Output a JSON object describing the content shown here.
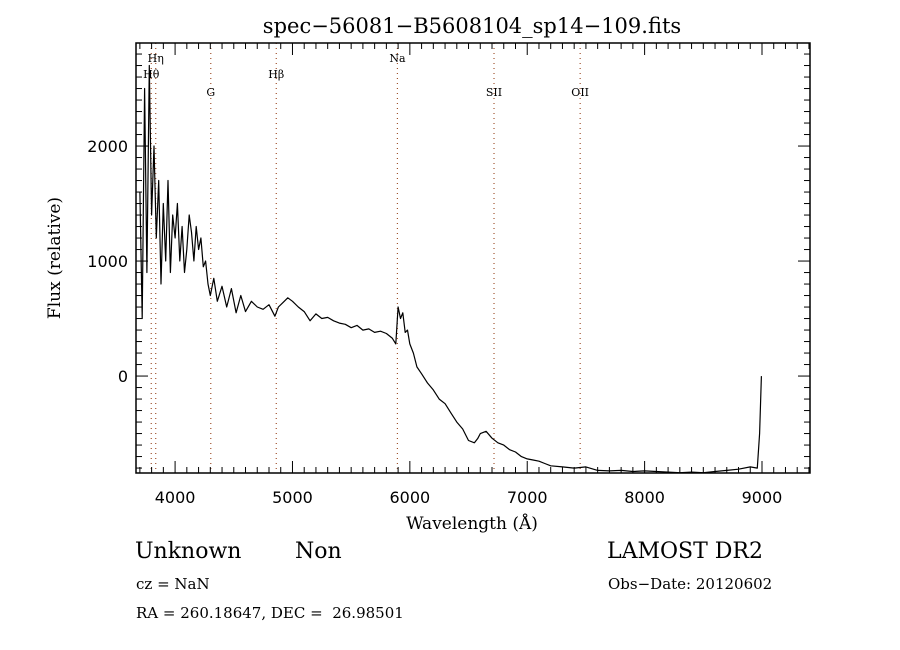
{
  "chart_data": {
    "type": "line",
    "title": "spec−56081−B5608104_sp14−109.fits",
    "xlabel": "Wavelength (Å)",
    "ylabel": "Flux (relative)",
    "xlim": [
      3667,
      9409
    ],
    "ylim": [
      -843,
      2896
    ],
    "xticks": [
      4000,
      5000,
      6000,
      7000,
      8000,
      9000
    ],
    "yticks": [
      0,
      1000,
      2000
    ],
    "xtick_labels": [
      "4000",
      "5000",
      "6000",
      "7000",
      "8000",
      "9000"
    ],
    "ytick_labels": [
      "0",
      "1000",
      "2000"
    ],
    "grid": false,
    "line_color": "#000000",
    "marker_color": "#a0522d",
    "spectral_lines": [
      {
        "label": "Hη",
        "wavelength": 3835,
        "row": 0
      },
      {
        "label": "Hθ",
        "wavelength": 3797,
        "row": 1
      },
      {
        "label": "G",
        "wavelength": 4304,
        "row": 2
      },
      {
        "label": "Hβ",
        "wavelength": 4862,
        "row": 1
      },
      {
        "label": "Na",
        "wavelength": 5894,
        "row": 0
      },
      {
        "label": "SII",
        "wavelength": 6717,
        "row": 2
      },
      {
        "label": "OII",
        "wavelength": 7451,
        "row": 2
      }
    ],
    "series": [
      {
        "name": "flux",
        "x": [
          3700,
          3720,
          3740,
          3760,
          3780,
          3800,
          3820,
          3840,
          3860,
          3880,
          3900,
          3920,
          3940,
          3960,
          3980,
          4000,
          4020,
          4040,
          4060,
          4080,
          4100,
          4120,
          4140,
          4160,
          4180,
          4200,
          4220,
          4240,
          4260,
          4280,
          4300,
          4330,
          4360,
          4400,
          4440,
          4480,
          4520,
          4560,
          4600,
          4650,
          4700,
          4750,
          4800,
          4850,
          4880,
          4920,
          4960,
          5000,
          5050,
          5100,
          5150,
          5200,
          5250,
          5300,
          5350,
          5400,
          5450,
          5500,
          5550,
          5600,
          5650,
          5700,
          5750,
          5800,
          5850,
          5880,
          5900,
          5920,
          5940,
          5960,
          5980,
          6000,
          6030,
          6060,
          6100,
          6150,
          6200,
          6250,
          6300,
          6350,
          6400,
          6450,
          6500,
          6550,
          6580,
          6600,
          6650,
          6700,
          6750,
          6800,
          6850,
          6900,
          6950,
          7000,
          7050,
          7100,
          7150,
          7200,
          7300,
          7400,
          7500,
          7600,
          7700,
          7800,
          7900,
          8000,
          8100,
          8200,
          8300,
          8400,
          8500,
          8600,
          8700,
          8800,
          8900,
          8960,
          8980,
          8995
        ],
        "y": [
          1600,
          500,
          2500,
          900,
          2700,
          1400,
          2000,
          1200,
          1700,
          800,
          1500,
          1000,
          1700,
          900,
          1400,
          1200,
          1500,
          1000,
          1300,
          900,
          1100,
          1400,
          1250,
          1000,
          1300,
          1100,
          1200,
          950,
          1000,
          800,
          700,
          850,
          650,
          780,
          600,
          760,
          550,
          700,
          560,
          650,
          600,
          580,
          620,
          520,
          600,
          640,
          680,
          650,
          600,
          560,
          480,
          540,
          500,
          510,
          480,
          460,
          450,
          420,
          440,
          400,
          410,
          380,
          390,
          370,
          330,
          280,
          600,
          500,
          550,
          380,
          400,
          280,
          200,
          80,
          20,
          -60,
          -120,
          -200,
          -240,
          -320,
          -400,
          -460,
          -560,
          -580,
          -540,
          -500,
          -480,
          -540,
          -580,
          -600,
          -640,
          -660,
          -700,
          -720,
          -730,
          -740,
          -760,
          -780,
          -790,
          -800,
          -790,
          -820,
          -825,
          -820,
          -830,
          -825,
          -830,
          -835,
          -840,
          -835,
          -840,
          -830,
          -820,
          -810,
          -790,
          -800,
          -500,
          0
        ]
      }
    ]
  },
  "info": {
    "object_class": "Unknown",
    "subclass": "Non",
    "survey": "LAMOST DR2",
    "redshift": "cz = NaN",
    "obs_date": "Obs−Date: 20120602",
    "coords": "RA = 260.18647, DEC =  26.98501"
  }
}
